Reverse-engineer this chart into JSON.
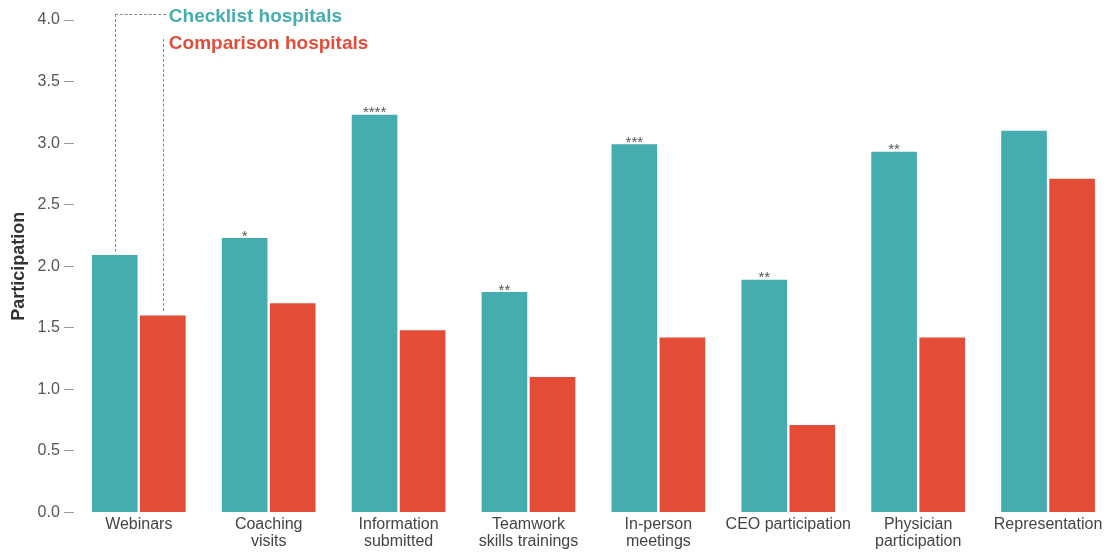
{
  "chart_data": {
    "type": "bar",
    "ylabel": "Participation",
    "categories": [
      "Webinars",
      "Coaching\nvisits",
      "Information\nsubmitted",
      "Teamwork\nskills trainings",
      "In-person\nmeetings",
      "CEO participation",
      "Physician\nparticipation",
      "Representation"
    ],
    "series": [
      {
        "name": "Checklist hospitals",
        "color": "#45adb0",
        "values": [
          2.09,
          2.23,
          3.23,
          1.79,
          2.99,
          1.89,
          2.93,
          3.1
        ]
      },
      {
        "name": "Comparison hospitals",
        "color": "#e34d38",
        "values": [
          1.6,
          1.7,
          1.48,
          1.1,
          1.42,
          0.71,
          1.42,
          2.71
        ]
      }
    ],
    "ylim": [
      0,
      4
    ],
    "yticks": [
      {
        "value": 0,
        "label": "0.0"
      },
      {
        "value": 0.5,
        "label": "0.5"
      },
      {
        "value": 1,
        "label": "1.0"
      },
      {
        "value": 1.5,
        "label": "1.5"
      },
      {
        "value": 2,
        "label": "2.0"
      },
      {
        "value": 2.5,
        "label": "2.5"
      },
      {
        "value": 3,
        "label": "3.0"
      },
      {
        "value": 3.5,
        "label": "3.5"
      },
      {
        "value": 4,
        "label": "4.0"
      }
    ],
    "annotations": [
      {
        "text": "*",
        "x": "Coaching\nvisits",
        "y": 2.23
      },
      {
        "text": "****",
        "x": "Information\nsubmitted",
        "y": 3.23
      },
      {
        "text": "**",
        "x": "Teamwork\nskills trainings",
        "y": 1.79
      },
      {
        "text": "***",
        "x": "In-person\nmeetings",
        "y": 2.99
      },
      {
        "text": "**",
        "x": "CEO participation",
        "y": 1.89
      },
      {
        "text": "**",
        "x": "Physician\nparticipation",
        "y": 2.93
      }
    ],
    "grid": false,
    "legend": "top left"
  }
}
